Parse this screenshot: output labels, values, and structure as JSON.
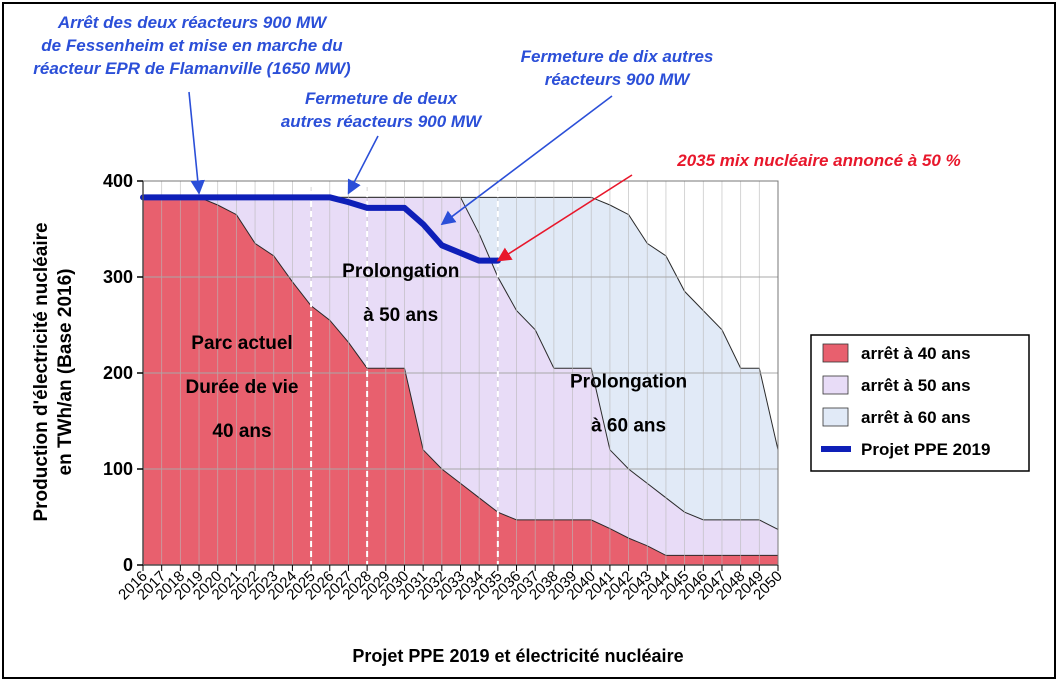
{
  "chart_data": {
    "type": "area",
    "xlabel": "Projet PPE 2019 et électricité nucléaire",
    "ylabel": [
      "Production d'électricité nucléaire",
      "en TWh/an (Base 2016)"
    ],
    "ylim": [
      0,
      400
    ],
    "yticks": [
      0,
      100,
      200,
      300,
      400
    ],
    "grid": true,
    "legend_position": "right",
    "x": [
      2016,
      2017,
      2018,
      2019,
      2020,
      2021,
      2022,
      2023,
      2024,
      2025,
      2026,
      2027,
      2028,
      2029,
      2030,
      2031,
      2032,
      2033,
      2034,
      2035,
      2036,
      2037,
      2038,
      2039,
      2040,
      2041,
      2042,
      2043,
      2044,
      2045,
      2046,
      2047,
      2048,
      2049,
      2050
    ],
    "series": [
      {
        "name": "arrêt à 40 ans",
        "color": "#e8606e",
        "values": [
          383,
          383,
          383,
          383,
          375,
          365,
          335,
          322,
          295,
          270,
          255,
          232,
          205,
          205,
          205,
          120,
          100,
          85,
          70,
          55,
          47,
          47,
          47,
          47,
          47,
          38,
          28,
          20,
          10,
          10,
          10,
          10,
          10,
          10,
          10
        ]
      },
      {
        "name": "arrêt à 50 ans",
        "color": "#e8dcf7",
        "values": [
          383,
          383,
          383,
          383,
          383,
          383,
          383,
          383,
          383,
          383,
          383,
          383,
          383,
          383,
          383,
          383,
          383,
          383,
          345,
          300,
          265,
          245,
          205,
          205,
          205,
          120,
          100,
          85,
          70,
          55,
          47,
          47,
          47,
          47,
          37
        ]
      },
      {
        "name": "arrêt à 60 ans",
        "color": "#e1eaf7",
        "values": [
          383,
          383,
          383,
          383,
          383,
          383,
          383,
          383,
          383,
          383,
          383,
          383,
          383,
          383,
          383,
          383,
          383,
          383,
          383,
          383,
          383,
          383,
          383,
          383,
          383,
          375,
          365,
          335,
          322,
          285,
          265,
          245,
          205,
          205,
          120
        ]
      },
      {
        "name": "Projet PPE 2019",
        "color": "#0e1fb8",
        "x": [
          2016,
          2017,
          2018,
          2019,
          2020,
          2021,
          2022,
          2023,
          2024,
          2025,
          2026,
          2027,
          2028,
          2029,
          2030,
          2031,
          2032,
          2033,
          2034,
          2035
        ],
        "values": [
          383,
          383,
          383,
          383,
          383,
          383,
          383,
          383,
          383,
          383,
          383,
          378,
          372,
          372,
          372,
          355,
          333,
          325,
          317,
          317
        ]
      }
    ],
    "vlines": [
      2025,
      2028,
      2035
    ],
    "region_labels": [
      {
        "lines": [
          "Parc actuel",
          "Durée de vie",
          "40 ans"
        ],
        "x": 2021.3,
        "y": 225
      },
      {
        "lines": [
          "Prolongation",
          "à 50 ans"
        ],
        "x": 2029.8,
        "y": 300
      },
      {
        "lines": [
          "Prolongation",
          "à 60 ans"
        ],
        "x": 2042.0,
        "y": 185
      }
    ],
    "annotations": [
      {
        "lines": [
          "Arrêt des deux réacteurs 900 MW",
          "de Fessenheim et mise en marche du",
          "réacteur EPR de Flamanville (1650 MW)"
        ],
        "color": "#2b4fd8",
        "target": [
          2019,
          383
        ]
      },
      {
        "lines": [
          "Fermeture de deux",
          "autres réacteurs 900 MW"
        ],
        "color": "#2b4fd8",
        "target": [
          2027,
          383
        ]
      },
      {
        "lines": [
          "Fermeture de dix autres",
          "réacteurs 900 MW"
        ],
        "color": "#2b4fd8",
        "target": [
          2032,
          355
        ]
      },
      {
        "lines": [
          "2035 mix nucléaire annoncé à 50 %"
        ],
        "color": "#e8172b",
        "target": [
          2035,
          317
        ]
      }
    ]
  }
}
